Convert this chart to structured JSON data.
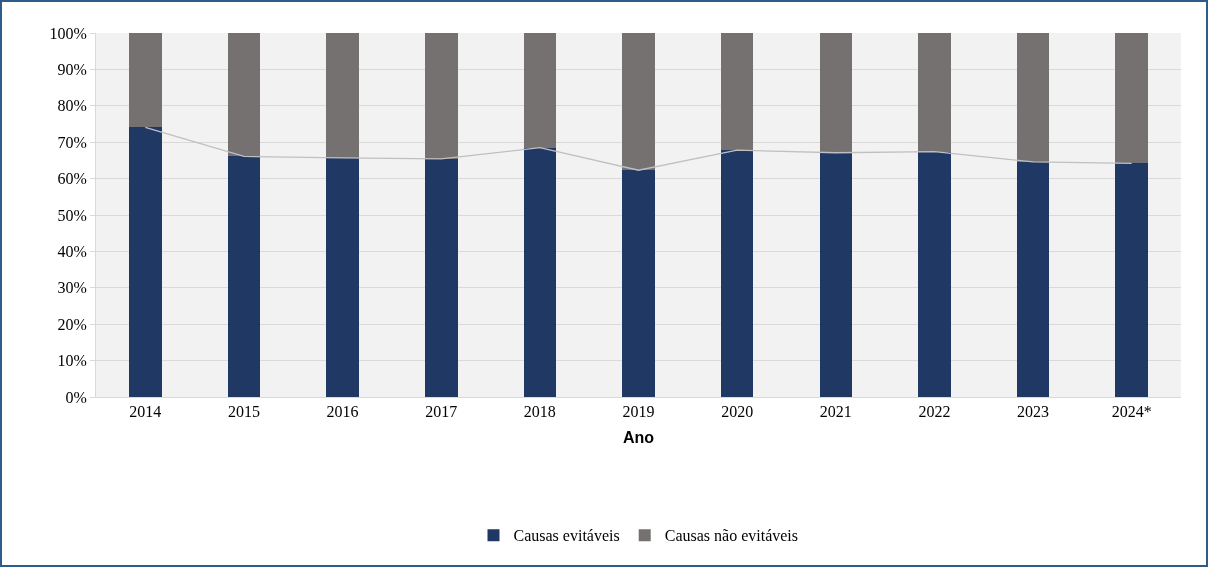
{
  "chart_data": {
    "type": "bar",
    "xlabel": "Ano",
    "stacked": true,
    "grid": "y",
    "legend": "bottom",
    "categories": [
      "2014",
      "2015",
      "2016",
      "2017",
      "2018",
      "2019",
      "2020",
      "2021",
      "2022",
      "2023",
      "2024*"
    ],
    "series": [
      {
        "name": "Causas evitáveis",
        "color": "#203864",
        "values": [
          74.1,
          66.1,
          65.7,
          65.4,
          68.5,
          62.3,
          67.8,
          67.1,
          67.4,
          64.6,
          64.2
        ]
      },
      {
        "name": "Causas não evitáveis",
        "color": "#767171",
        "values": [
          25.9,
          33.9,
          34.3,
          34.6,
          31.5,
          37.7,
          32.2,
          32.9,
          32.6,
          35.4,
          35.8
        ]
      },
      {
        "type": "line",
        "color": "#c0c0c0",
        "values": [
          74.1,
          66.1,
          65.7,
          65.4,
          68.5,
          62.3,
          67.8,
          67.1,
          67.4,
          64.6,
          64.2
        ]
      }
    ],
    "ylim": [
      0,
      100
    ],
    "yticks": [
      {
        "value": 0,
        "label": "0%"
      },
      {
        "value": 10,
        "label": "10%"
      },
      {
        "value": 20,
        "label": "20%"
      },
      {
        "value": 30,
        "label": "30%"
      },
      {
        "value": 40,
        "label": "40%"
      },
      {
        "value": 50,
        "label": "50%"
      },
      {
        "value": 60,
        "label": "60%"
      },
      {
        "value": 70,
        "label": "70%"
      },
      {
        "value": 80,
        "label": "80%"
      },
      {
        "value": 90,
        "label": "90%"
      },
      {
        "value": 100,
        "label": "100%"
      }
    ]
  }
}
